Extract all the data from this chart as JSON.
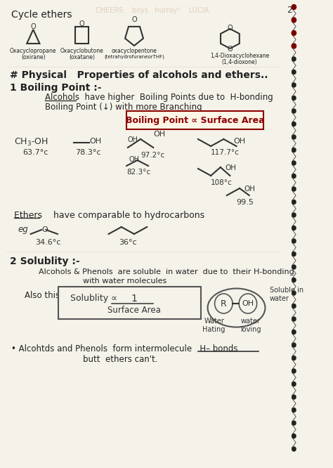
{
  "bg_color": "#f0ede4",
  "page_color": "#f5f2ea",
  "title": "Cycle ethers",
  "page_num": "2",
  "heading": "# Physical   Properties of alcohols and ethers..",
  "section1_title": "1 Boiling Point :-",
  "section1_line1": "Alcohols  have higher  Boiling Points due to  H-bonding",
  "section1_line2": "Boiling Point (↓) with more Branching",
  "bp_box": "Boiling Point ∝ Surface Area",
  "ethers_line": "Ethers    have comparable to hydrocarbons",
  "section2_title": "2 Solublity :-",
  "section2_line1": "Alcohols & Phenols  are soluble  in water  due to  their H-bonding",
  "section2_line2": "with water molecules",
  "also_line": "Also this",
  "solub_box1": "Solublity ∝        1",
  "solub_box2": "Surface Area",
  "soluble_note": "Soluble in\nwater",
  "r_oh": "R—OH",
  "water_hating": "Water\nHating",
  "water_loving": "water\nloving",
  "bullet": "• Alcohtds and Phenols  form intermolecule   H– bonds",
  "bullet2": "butt  ethers can't.",
  "spiral_color": "#222222",
  "line_color": "#333333",
  "highlight_color": "#e8c8a0",
  "box_color": "#c8a878"
}
